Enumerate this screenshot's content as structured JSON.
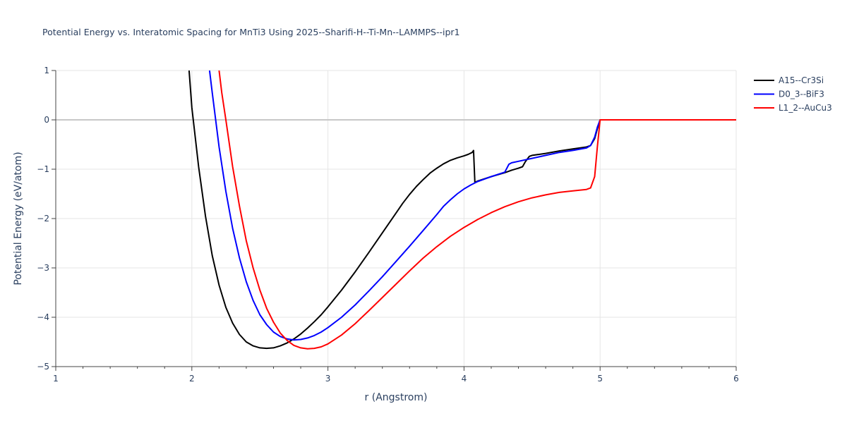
{
  "chart_data": {
    "type": "line",
    "title": "Potential Energy vs. Interatomic Spacing for MnTi3 Using 2025--Sharifi-H--Ti-Mn--LAMMPS--ipr1",
    "xlabel": "r (Angstrom)",
    "ylabel": "Potential Energy (eV/atom)",
    "xlim": [
      1,
      6
    ],
    "ylim": [
      -5,
      1
    ],
    "x_ticks": [
      "1",
      "2",
      "3",
      "4",
      "5",
      "6"
    ],
    "y_ticks": [
      "1",
      "0",
      "−1",
      "−2",
      "−3",
      "−4",
      "−5"
    ],
    "grid": true,
    "legend_position": "top-right",
    "series": [
      {
        "name": "A15--Cr3Si",
        "color": "#000000",
        "points": [
          [
            1.98,
            1.0
          ],
          [
            2.0,
            0.25
          ],
          [
            2.05,
            -0.95
          ],
          [
            2.1,
            -1.95
          ],
          [
            2.15,
            -2.75
          ],
          [
            2.2,
            -3.35
          ],
          [
            2.25,
            -3.8
          ],
          [
            2.3,
            -4.12
          ],
          [
            2.35,
            -4.35
          ],
          [
            2.4,
            -4.5
          ],
          [
            2.45,
            -4.58
          ],
          [
            2.5,
            -4.62
          ],
          [
            2.55,
            -4.63
          ],
          [
            2.6,
            -4.62
          ],
          [
            2.65,
            -4.58
          ],
          [
            2.7,
            -4.52
          ],
          [
            2.75,
            -4.44
          ],
          [
            2.8,
            -4.34
          ],
          [
            2.85,
            -4.22
          ],
          [
            2.9,
            -4.09
          ],
          [
            2.95,
            -3.95
          ],
          [
            3.0,
            -3.79
          ],
          [
            3.1,
            -3.45
          ],
          [
            3.2,
            -3.08
          ],
          [
            3.3,
            -2.69
          ],
          [
            3.4,
            -2.29
          ],
          [
            3.5,
            -1.89
          ],
          [
            3.55,
            -1.69
          ],
          [
            3.6,
            -1.51
          ],
          [
            3.65,
            -1.35
          ],
          [
            3.7,
            -1.21
          ],
          [
            3.75,
            -1.08
          ],
          [
            3.8,
            -0.98
          ],
          [
            3.85,
            -0.89
          ],
          [
            3.9,
            -0.82
          ],
          [
            3.95,
            -0.77
          ],
          [
            4.0,
            -0.73
          ],
          [
            4.03,
            -0.7
          ],
          [
            4.06,
            -0.66
          ],
          [
            4.07,
            -0.62
          ],
          [
            4.08,
            -1.27
          ],
          [
            4.1,
            -1.24
          ],
          [
            4.2,
            -1.15
          ],
          [
            4.3,
            -1.07
          ],
          [
            4.35,
            -1.02
          ],
          [
            4.4,
            -0.98
          ],
          [
            4.43,
            -0.95
          ],
          [
            4.45,
            -0.85
          ],
          [
            4.48,
            -0.74
          ],
          [
            4.5,
            -0.72
          ],
          [
            4.6,
            -0.68
          ],
          [
            4.7,
            -0.63
          ],
          [
            4.8,
            -0.59
          ],
          [
            4.9,
            -0.55
          ],
          [
            4.93,
            -0.52
          ],
          [
            4.96,
            -0.38
          ],
          [
            4.98,
            -0.18
          ],
          [
            5.0,
            0.0
          ],
          [
            6.0,
            0.0
          ]
        ]
      },
      {
        "name": "D0_3--BiF3",
        "color": "#0000ff",
        "points": [
          [
            2.13,
            1.0
          ],
          [
            2.15,
            0.55
          ],
          [
            2.2,
            -0.55
          ],
          [
            2.25,
            -1.45
          ],
          [
            2.3,
            -2.2
          ],
          [
            2.35,
            -2.8
          ],
          [
            2.4,
            -3.28
          ],
          [
            2.45,
            -3.66
          ],
          [
            2.5,
            -3.95
          ],
          [
            2.55,
            -4.15
          ],
          [
            2.6,
            -4.3
          ],
          [
            2.65,
            -4.39
          ],
          [
            2.7,
            -4.44
          ],
          [
            2.75,
            -4.46
          ],
          [
            2.8,
            -4.45
          ],
          [
            2.85,
            -4.42
          ],
          [
            2.9,
            -4.37
          ],
          [
            2.95,
            -4.3
          ],
          [
            3.0,
            -4.21
          ],
          [
            3.1,
            -4.0
          ],
          [
            3.2,
            -3.75
          ],
          [
            3.3,
            -3.47
          ],
          [
            3.4,
            -3.18
          ],
          [
            3.5,
            -2.87
          ],
          [
            3.6,
            -2.56
          ],
          [
            3.7,
            -2.24
          ],
          [
            3.8,
            -1.92
          ],
          [
            3.85,
            -1.75
          ],
          [
            3.9,
            -1.62
          ],
          [
            3.95,
            -1.5
          ],
          [
            4.0,
            -1.4
          ],
          [
            4.05,
            -1.32
          ],
          [
            4.1,
            -1.25
          ],
          [
            4.2,
            -1.15
          ],
          [
            4.3,
            -1.06
          ],
          [
            4.33,
            -0.9
          ],
          [
            4.35,
            -0.87
          ],
          [
            4.4,
            -0.84
          ],
          [
            4.5,
            -0.78
          ],
          [
            4.6,
            -0.72
          ],
          [
            4.7,
            -0.66
          ],
          [
            4.8,
            -0.62
          ],
          [
            4.9,
            -0.57
          ],
          [
            4.93,
            -0.52
          ],
          [
            4.96,
            -0.35
          ],
          [
            4.98,
            -0.15
          ],
          [
            5.0,
            0.0
          ],
          [
            6.0,
            0.0
          ]
        ]
      },
      {
        "name": "L1_2--AuCu3",
        "color": "#ff0000",
        "points": [
          [
            2.2,
            1.0
          ],
          [
            2.22,
            0.55
          ],
          [
            2.25,
            0.0
          ],
          [
            2.3,
            -0.95
          ],
          [
            2.35,
            -1.75
          ],
          [
            2.4,
            -2.45
          ],
          [
            2.45,
            -3.0
          ],
          [
            2.5,
            -3.45
          ],
          [
            2.55,
            -3.82
          ],
          [
            2.6,
            -4.1
          ],
          [
            2.65,
            -4.32
          ],
          [
            2.7,
            -4.47
          ],
          [
            2.75,
            -4.57
          ],
          [
            2.8,
            -4.62
          ],
          [
            2.85,
            -4.64
          ],
          [
            2.9,
            -4.63
          ],
          [
            2.95,
            -4.6
          ],
          [
            3.0,
            -4.54
          ],
          [
            3.1,
            -4.36
          ],
          [
            3.2,
            -4.13
          ],
          [
            3.3,
            -3.87
          ],
          [
            3.4,
            -3.6
          ],
          [
            3.5,
            -3.33
          ],
          [
            3.6,
            -3.06
          ],
          [
            3.7,
            -2.8
          ],
          [
            3.8,
            -2.57
          ],
          [
            3.9,
            -2.36
          ],
          [
            4.0,
            -2.18
          ],
          [
            4.1,
            -2.02
          ],
          [
            4.2,
            -1.88
          ],
          [
            4.3,
            -1.76
          ],
          [
            4.4,
            -1.66
          ],
          [
            4.5,
            -1.58
          ],
          [
            4.6,
            -1.52
          ],
          [
            4.7,
            -1.47
          ],
          [
            4.8,
            -1.44
          ],
          [
            4.9,
            -1.41
          ],
          [
            4.93,
            -1.38
          ],
          [
            4.96,
            -1.15
          ],
          [
            4.98,
            -0.55
          ],
          [
            5.0,
            0.0
          ],
          [
            6.0,
            0.0
          ]
        ]
      }
    ]
  }
}
